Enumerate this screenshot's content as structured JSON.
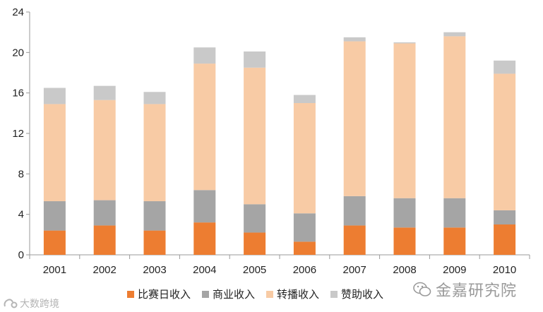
{
  "chart_data": {
    "type": "bar",
    "stacked": true,
    "categories": [
      "2001",
      "2002",
      "2003",
      "2004",
      "2005",
      "2006",
      "2007",
      "2008",
      "2009",
      "2010"
    ],
    "series": [
      {
        "name": "比赛日收入",
        "color": "#ed7d31",
        "values": [
          2.4,
          2.9,
          2.4,
          3.2,
          2.2,
          1.3,
          2.9,
          2.7,
          2.7,
          3.0
        ]
      },
      {
        "name": "商业收入",
        "color": "#a5a5a5",
        "values": [
          2.9,
          2.5,
          2.9,
          3.2,
          2.8,
          2.8,
          2.9,
          2.9,
          2.9,
          1.4
        ]
      },
      {
        "name": "转播收入",
        "color": "#f8cba5",
        "values": [
          9.6,
          9.9,
          9.6,
          12.5,
          13.5,
          10.9,
          15.3,
          15.3,
          16.0,
          13.5
        ]
      },
      {
        "name": "赞助收入",
        "color": "#c9c9c9",
        "values": [
          1.6,
          1.4,
          1.2,
          1.6,
          1.6,
          0.8,
          0.4,
          0.1,
          0.4,
          1.3
        ]
      }
    ],
    "y_ticks": [
      0,
      4,
      8,
      12,
      16,
      20,
      24
    ],
    "ylim": [
      0,
      24
    ],
    "grid": false,
    "legend_position": "bottom"
  },
  "watermarks": {
    "right_text": "金嘉研究院",
    "left_text": "大数跨境"
  }
}
